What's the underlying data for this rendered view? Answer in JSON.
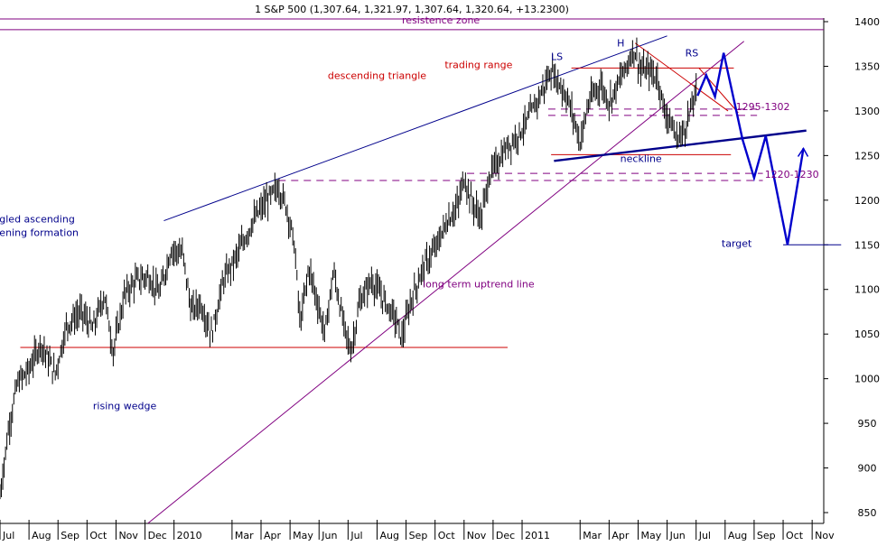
{
  "chart_data": {
    "type": "line",
    "style": "high-low bars",
    "title": "1 S&P 500 (1,307.64, 1,321.97, 1,307.64, 1,320.64, +13.2300)",
    "y_ticks": [
      850,
      900,
      950,
      1000,
      1050,
      1100,
      1150,
      1200,
      1250,
      1300,
      1350,
      1400
    ],
    "x_ticks": [
      {
        "label": "Jul",
        "t": 0
      },
      {
        "label": "Aug",
        "t": 1
      },
      {
        "label": "Sep",
        "t": 2
      },
      {
        "label": "Oct",
        "t": 3
      },
      {
        "label": "Nov",
        "t": 4
      },
      {
        "label": "Dec",
        "t": 5
      },
      {
        "label": "2010",
        "t": 6
      },
      {
        "label": "Mar",
        "t": 8
      },
      {
        "label": "Apr",
        "t": 9
      },
      {
        "label": "May",
        "t": 10
      },
      {
        "label": "Jun",
        "t": 11
      },
      {
        "label": "Jul",
        "t": 12
      },
      {
        "label": "Aug",
        "t": 13
      },
      {
        "label": "Sep",
        "t": 14
      },
      {
        "label": "Oct",
        "t": 15
      },
      {
        "label": "Nov",
        "t": 16
      },
      {
        "label": "Dec",
        "t": 17
      },
      {
        "label": "2011",
        "t": 18
      },
      {
        "label": "Mar",
        "t": 20
      },
      {
        "label": "Apr",
        "t": 21
      },
      {
        "label": "May",
        "t": 22
      },
      {
        "label": "Jun",
        "t": 23
      },
      {
        "label": "Jul",
        "t": 24
      },
      {
        "label": "Aug",
        "t": 25
      },
      {
        "label": "Sep",
        "t": 26
      },
      {
        "label": "Oct",
        "t": 27
      },
      {
        "label": "Nov",
        "t": 28
      }
    ],
    "price_anchors": [
      [
        0.0,
        870
      ],
      [
        0.1,
        895
      ],
      [
        0.3,
        945
      ],
      [
        0.6,
        995
      ],
      [
        1.0,
        1010
      ],
      [
        1.4,
        1040
      ],
      [
        1.9,
        1005
      ],
      [
        2.3,
        1060
      ],
      [
        2.8,
        1075
      ],
      [
        3.2,
        1055
      ],
      [
        3.6,
        1095
      ],
      [
        3.9,
        1030
      ],
      [
        4.3,
        1095
      ],
      [
        4.7,
        1110
      ],
      [
        5.1,
        1115
      ],
      [
        5.5,
        1095
      ],
      [
        5.9,
        1145
      ],
      [
        6.3,
        1140
      ],
      [
        6.6,
        1075
      ],
      [
        6.9,
        1085
      ],
      [
        7.3,
        1050
      ],
      [
        7.7,
        1110
      ],
      [
        8.2,
        1140
      ],
      [
        8.7,
        1175
      ],
      [
        9.1,
        1195
      ],
      [
        9.6,
        1215
      ],
      [
        9.9,
        1190
      ],
      [
        10.15,
        1150
      ],
      [
        10.35,
        1060
      ],
      [
        10.65,
        1125
      ],
      [
        10.95,
        1085
      ],
      [
        11.2,
        1050
      ],
      [
        11.5,
        1120
      ],
      [
        11.85,
        1060
      ],
      [
        12.1,
        1030
      ],
      [
        12.4,
        1085
      ],
      [
        12.8,
        1110
      ],
      [
        13.2,
        1090
      ],
      [
        13.6,
        1070
      ],
      [
        13.85,
        1045
      ],
      [
        14.2,
        1090
      ],
      [
        14.6,
        1125
      ],
      [
        15.0,
        1145
      ],
      [
        15.4,
        1175
      ],
      [
        15.8,
        1195
      ],
      [
        16.0,
        1225
      ],
      [
        16.3,
        1195
      ],
      [
        16.6,
        1180
      ],
      [
        16.85,
        1225
      ],
      [
        17.2,
        1245
      ],
      [
        17.5,
        1260
      ],
      [
        17.9,
        1275
      ],
      [
        18.2,
        1290
      ],
      [
        18.5,
        1310
      ],
      [
        18.8,
        1330
      ],
      [
        19.0,
        1345
      ],
      [
        19.3,
        1330
      ],
      [
        19.55,
        1315
      ],
      [
        19.8,
        1290
      ],
      [
        20.0,
        1265
      ],
      [
        20.3,
        1310
      ],
      [
        20.7,
        1330
      ],
      [
        21.0,
        1310
      ],
      [
        21.3,
        1330
      ],
      [
        21.6,
        1350
      ],
      [
        21.85,
        1370
      ],
      [
        22.1,
        1345
      ],
      [
        22.4,
        1345
      ],
      [
        22.7,
        1335
      ],
      [
        22.9,
        1300
      ],
      [
        23.1,
        1290
      ],
      [
        23.3,
        1270
      ],
      [
        23.55,
        1275
      ],
      [
        23.8,
        1300
      ],
      [
        24.0,
        1320
      ]
    ],
    "annotations": [
      {
        "text": "resistence zone",
        "t": 15.2,
        "y": 1398,
        "color": "#800080"
      },
      {
        "text": "descending  triangle",
        "t": 13.0,
        "y": 1336,
        "color": "#cc0000"
      },
      {
        "text": "trading range",
        "t": 16.5,
        "y": 1348,
        "color": "#cc0000"
      },
      {
        "text": "LS",
        "t": 19.2,
        "y": 1357,
        "color": "#00008b"
      },
      {
        "text": "H",
        "t": 21.4,
        "y": 1372,
        "color": "#00008b"
      },
      {
        "text": "RS",
        "t": 23.85,
        "y": 1361,
        "color": "#00008b"
      },
      {
        "text": "1295-1302",
        "t": 26.3,
        "y": 1301,
        "color": "#800080"
      },
      {
        "text": "neckline",
        "t": 22.1,
        "y": 1243,
        "color": "#00008b"
      },
      {
        "text": "1220-1230",
        "t": 27.3,
        "y": 1225,
        "color": "#800080"
      },
      {
        "text": "right-angled ascending",
        "t": 0.6,
        "y": 1175,
        "color": "#00008b"
      },
      {
        "text": "broadening formation",
        "t": 0.85,
        "y": 1160,
        "color": "#00008b"
      },
      {
        "text": "target",
        "t": 25.4,
        "y": 1148,
        "color": "#00008b"
      },
      {
        "text": "long term uptrend line",
        "t": 16.5,
        "y": 1102,
        "color": "#800080"
      },
      {
        "text": "rising wedge",
        "t": 4.3,
        "y": 966,
        "color": "#00008b"
      }
    ]
  }
}
